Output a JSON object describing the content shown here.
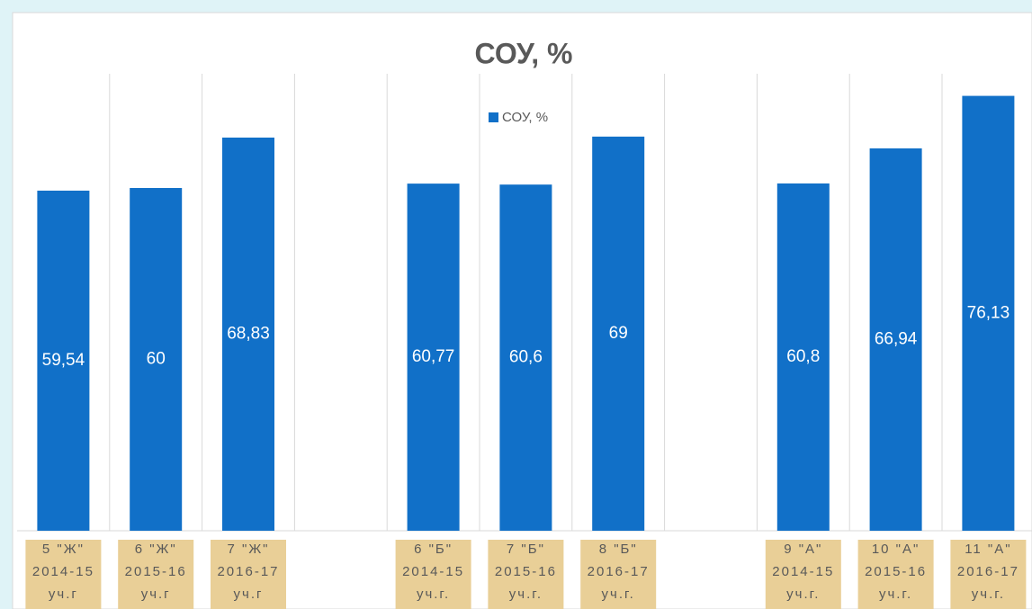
{
  "chart_data": {
    "type": "bar",
    "title": "СОУ, %",
    "categories": [
      [
        "5 \"Ж\"",
        "2014-15",
        "уч.г"
      ],
      [
        "6 \"Ж\"",
        "2015-16",
        "уч.г"
      ],
      [
        "7 \"Ж\"",
        "2016-17",
        "уч.г"
      ],
      null,
      [
        "6 \"Б\"",
        "2014-15",
        "уч.г."
      ],
      [
        "7 \"Б\"",
        "2015-16",
        "уч.г."
      ],
      [
        "8 \"Б\"",
        "2016-17",
        "уч.г."
      ],
      null,
      [
        "9 \"А\"",
        "2014-15",
        "уч.г."
      ],
      [
        "10 \"А\"",
        "2015-16",
        "уч.г."
      ],
      [
        "11 \"А\"",
        "2016-17",
        "уч.г."
      ]
    ],
    "series": [
      {
        "name": "СОУ, %",
        "color": "#1170c8",
        "values": [
          59.54,
          60,
          68.83,
          null,
          60.77,
          60.6,
          69,
          null,
          60.8,
          66.94,
          76.13
        ],
        "value_labels": [
          "59,54",
          "60",
          "68,83",
          null,
          "60,77",
          "60,6",
          "69",
          null,
          "60,8",
          "66,94",
          "76,13"
        ]
      }
    ],
    "ylim": [
      0,
      90
    ],
    "legend": "top"
  }
}
